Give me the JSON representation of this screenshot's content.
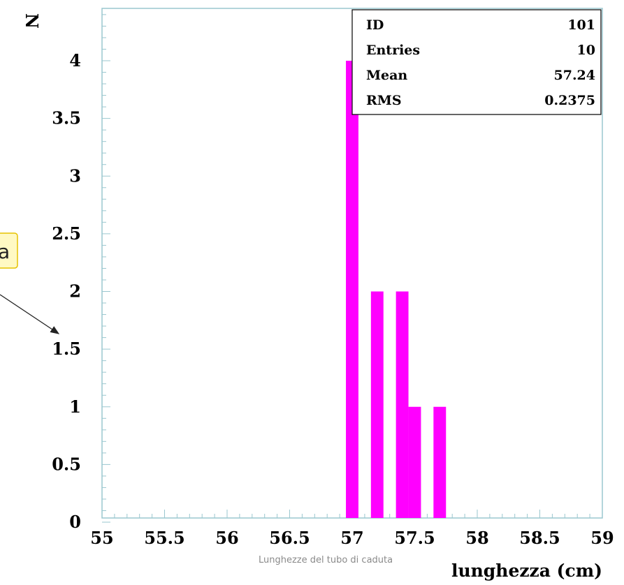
{
  "chart_data": {
    "type": "bar",
    "histogram": true,
    "bins": [
      {
        "x0": 56.95,
        "x1": 57.05,
        "count": 4
      },
      {
        "x0": 57.15,
        "x1": 57.25,
        "count": 2
      },
      {
        "x0": 57.35,
        "x1": 57.45,
        "count": 2
      },
      {
        "x0": 57.45,
        "x1": 57.55,
        "count": 1
      },
      {
        "x0": 57.65,
        "x1": 57.75,
        "count": 1
      }
    ],
    "xlim": [
      55,
      59
    ],
    "ylim": [
      0,
      4.4
    ],
    "xticks": [
      "55",
      "55.5",
      "56",
      "56.5",
      "57",
      "57.5",
      "58",
      "58.5",
      "59"
    ],
    "yticks": [
      "0",
      "0.5",
      "1",
      "1.5",
      "2",
      "2.5",
      "3",
      "3.5",
      "4"
    ],
    "xlabel": "lunghezza (cm)",
    "ylabel": "N",
    "caption": "Lunghezze del tubo di caduta",
    "bar_color": "#ff00ff",
    "stats": [
      {
        "label": "ID",
        "value": "101"
      },
      {
        "label": "Entries",
        "value": "10"
      },
      {
        "label": "Mean",
        "value": "57.24"
      },
      {
        "label": "RMS",
        "value": "0.2375"
      }
    ],
    "callout_text": "a",
    "callout_bg": "#fff9c4",
    "callout_border": "#e6c200"
  }
}
